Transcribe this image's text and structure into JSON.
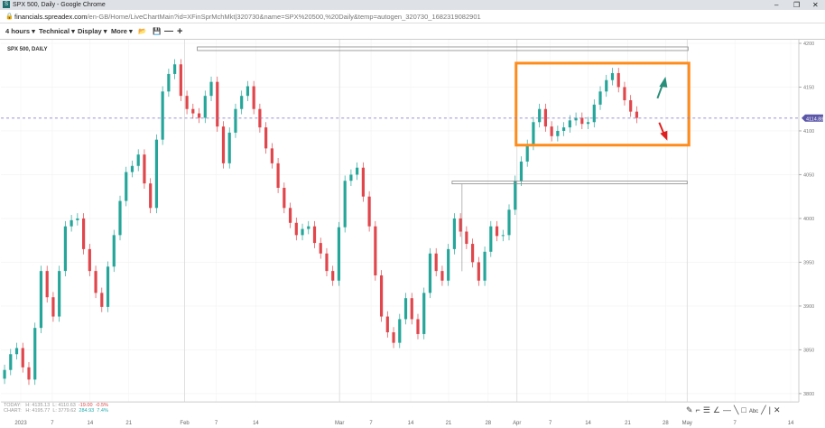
{
  "window": {
    "title": "SPX 500, Daily - Google Chrome",
    "icon": "S",
    "minimize": "–",
    "restore": "❐",
    "close": "✕"
  },
  "url": {
    "domain": "financials.spreadex.com",
    "path": "/en-GB/Home/LiveChartMain?id=XFinSprMchMkt|320730&name=SPX%20500,%20Daily&temp=autogen_320730_1682319082901"
  },
  "toolbar": {
    "interval": "4 hours ▾",
    "technical": "Technical ▾",
    "display": "Display ▾",
    "more": "More ▾",
    "open_icon": "folder-open-icon",
    "save_icon": "save-icon",
    "zoom_out": "—",
    "zoom_in": "+"
  },
  "chart_title": "SPX 500, DAILY",
  "stats": {
    "today_label": "TODAY:",
    "today_h": "H: 4135.13",
    "today_l": "L: 4110.63",
    "today_chg": "-19.00",
    "today_pct": "-0.5%",
    "chart_label": "CHART:",
    "chart_h": "H: 4195.77",
    "chart_l": "L: 3779.62",
    "chart_chg": "284.93",
    "chart_pct": "7.4%"
  },
  "drawing_tools": [
    "pen-icon",
    "curve-icon",
    "fib-icon",
    "fan-icon",
    "hline-icon",
    "trendline-icon",
    "rect-icon",
    "text-icon",
    "line-icon",
    "vline-icon",
    "delete-icon"
  ],
  "colors": {
    "up": "#26a69a",
    "down": "#e0464b",
    "box": "#ff8c1a",
    "arrow_up": "#2a8f7a",
    "arrow_down": "#e02020",
    "price_tag": "#5b56a8"
  },
  "chart_data": {
    "type": "candlestick",
    "title": "SPX 500, DAILY",
    "ylim": [
      3795,
      4205
    ],
    "yticks": [
      "4200",
      "4150",
      "4100",
      "4050",
      "4000",
      "3950",
      "3900",
      "3850",
      "3800"
    ],
    "xticks": [
      "2023",
      "7",
      "14",
      "21",
      "Feb",
      "7",
      "14",
      "Mar",
      "7",
      "14",
      "21",
      "28",
      "Apr",
      "7",
      "14",
      "21",
      "28",
      "May",
      "7",
      "14"
    ],
    "last_price": "4114.88",
    "close": [
      3827,
      3845,
      3852,
      3830,
      3816,
      3875,
      3940,
      3910,
      3888,
      3940,
      3991,
      3998,
      4000,
      3965,
      3940,
      3915,
      3899,
      3945,
      3981,
      4020,
      4053,
      4060,
      4073,
      4040,
      4012,
      4090,
      4145,
      4165,
      4176,
      4140,
      4125,
      4120,
      4115,
      4140,
      4156,
      4105,
      4063,
      4098,
      4125,
      4140,
      4151,
      4125,
      4104,
      4080,
      4063,
      4035,
      4012,
      3995,
      3981,
      3988,
      3991,
      3972,
      3960,
      3940,
      3929,
      3990,
      4043,
      4050,
      4058,
      4025,
      3991,
      3935,
      3888,
      3870,
      3858,
      3885,
      3909,
      3885,
      3868,
      3915,
      3960,
      3940,
      3929,
      3965,
      4000,
      3985,
      3971,
      3950,
      3929,
      3962,
      3991,
      3980,
      3981,
      4010,
      4043,
      4065,
      4084,
      4110,
      4125,
      4105,
      4094,
      4100,
      4104,
      4112,
      4115,
      4108,
      4110,
      4130,
      4145,
      4158,
      4166,
      4150,
      4135,
      4122,
      4114.88
    ]
  }
}
